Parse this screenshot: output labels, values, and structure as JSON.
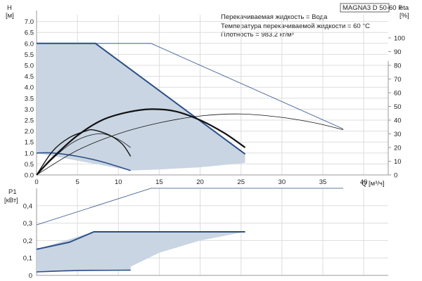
{
  "model_title": "MAGNA3 D 50-60 F",
  "info_lines": [
    "Перекачиваемая жидкость = Вода",
    "Температура перекачиваемой жидкости = 60 °C",
    "Плотность = 983.2 кг/м³"
  ],
  "colors": {
    "area_fill": "#c9d5e2",
    "outline_blue": "#2b4f87",
    "curve_black": "#111111",
    "grid": "#dddddd",
    "axis": "#999999"
  },
  "chart_data": [
    {
      "type": "line",
      "name": "head",
      "y_axis_label": [
        "H",
        "[м]"
      ],
      "y2_axis_label": [
        "eta",
        "[%]"
      ],
      "x_axis_label": "Q [м³/ч]",
      "x_ticks": [
        "0",
        "5",
        "10",
        "15",
        "20",
        "25",
        "30",
        "35",
        "40"
      ],
      "xlim": [
        0,
        43
      ],
      "ylim": [
        0,
        7.5
      ],
      "y_ticks": [
        "0.0",
        "0.5",
        "1.0",
        "1.5",
        "2.0",
        "2.5",
        "3.0",
        "3.5",
        "4.0",
        "4.5",
        "5.0",
        "5.5",
        "6.0",
        "6.5",
        "7.0"
      ],
      "y2lim": [
        0,
        120
      ],
      "y2_ticks": [
        "0",
        "10",
        "20",
        "30",
        "40",
        "50",
        "60",
        "70",
        "80",
        "90",
        "100"
      ],
      "grid": true,
      "operating_area": [
        [
          0,
          0
        ],
        [
          0,
          6.0
        ],
        [
          7.2,
          6.0
        ],
        [
          25.5,
          0.95
        ],
        [
          25.5,
          0.55
        ],
        [
          20,
          0.35
        ],
        [
          15,
          0.25
        ],
        [
          11.5,
          0.2
        ],
        [
          0,
          1.0
        ]
      ],
      "series": [
        {
          "role": "max_curve",
          "axis": "H",
          "points": [
            [
              0,
              6.0
            ],
            [
              7.2,
              6.0
            ],
            [
              25.5,
              0.95
            ]
          ]
        },
        {
          "role": "min_curve",
          "axis": "H",
          "points": [
            [
              0,
              1.0
            ],
            [
              2,
              1.0
            ],
            [
              5,
              0.85
            ],
            [
              8,
              0.6
            ],
            [
              11.5,
              0.2
            ]
          ]
        },
        {
          "role": "max_speed_extended",
          "axis": "H",
          "points": [
            [
              0,
              6.0
            ],
            [
              14,
              6.0
            ],
            [
              37.5,
              2.1
            ]
          ]
        },
        {
          "role": "duty_curve_large",
          "axis": "H",
          "points": [
            [
              0,
              0
            ],
            [
              2,
              0.8
            ],
            [
              5,
              1.8
            ],
            [
              8,
              2.5
            ],
            [
              11,
              2.85
            ],
            [
              14,
              3.0
            ],
            [
              17,
              2.9
            ],
            [
              20,
              2.5
            ],
            [
              23,
              1.9
            ],
            [
              25.5,
              1.25
            ]
          ]
        },
        {
          "role": "duty_curve_small",
          "axis": "H",
          "points": [
            [
              0,
              0
            ],
            [
              2,
              1.1
            ],
            [
              4,
              1.7
            ],
            [
              6,
              2.0
            ],
            [
              7,
              2.05
            ],
            [
              9,
              1.8
            ],
            [
              10.5,
              1.4
            ],
            [
              11.5,
              0.85
            ]
          ]
        },
        {
          "role": "efficiency_thin",
          "axis": "eta",
          "points": [
            [
              0,
              0
            ],
            [
              5,
              18
            ],
            [
              10,
              30
            ],
            [
              15,
              38
            ],
            [
              20,
              43
            ],
            [
              25,
              44.5
            ],
            [
              30,
              42
            ],
            [
              34,
              38
            ],
            [
              37.5,
              33
            ]
          ]
        },
        {
          "role": "efficiency_small_pump",
          "axis": "eta",
          "points": [
            [
              0,
              0
            ],
            [
              2,
              12
            ],
            [
              4,
              22
            ],
            [
              6,
              28
            ],
            [
              8,
              30
            ],
            [
              10,
              26
            ],
            [
              11.5,
              20
            ]
          ]
        }
      ]
    },
    {
      "type": "line",
      "name": "power",
      "y_axis_label": [
        "P1",
        "[кВт]"
      ],
      "xlim": [
        0,
        43
      ],
      "ylim": [
        0,
        0.5
      ],
      "y_ticks": [
        "0",
        "0,1",
        "0,2",
        "0,3",
        "0,4"
      ],
      "grid": true,
      "operating_area": [
        [
          0,
          0.02
        ],
        [
          0,
          0.15
        ],
        [
          7,
          0.25
        ],
        [
          25.5,
          0.25
        ],
        [
          20,
          0.2
        ],
        [
          15,
          0.13
        ],
        [
          11.5,
          0.05
        ],
        [
          11.5,
          0.03
        ]
      ],
      "series": [
        {
          "role": "power_max",
          "points": [
            [
              0,
              0.15
            ],
            [
              4,
              0.19
            ],
            [
              7,
              0.25
            ],
            [
              25.5,
              0.25
            ]
          ]
        },
        {
          "role": "power_min",
          "points": [
            [
              0,
              0.02
            ],
            [
              5,
              0.028
            ],
            [
              11.5,
              0.03
            ]
          ]
        },
        {
          "role": "power_extended",
          "points": [
            [
              0,
              0.29
            ],
            [
              14,
              0.5
            ],
            [
              37.5,
              0.5
            ]
          ]
        }
      ]
    }
  ]
}
